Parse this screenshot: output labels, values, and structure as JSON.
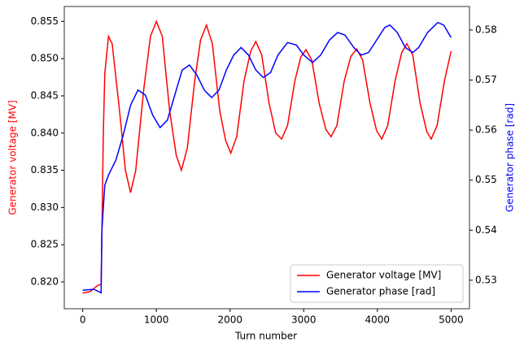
{
  "chart_data": {
    "type": "line",
    "xlabel": "Turn number",
    "ylabel": "Generator voltage [MV]",
    "y2label": "Generator phase [rad]",
    "xlim": [
      -250,
      5250
    ],
    "xticks": [
      0,
      1000,
      2000,
      3000,
      4000,
      5000
    ],
    "ylim": [
      0.8164,
      0.857
    ],
    "yticks": [
      {
        "value": 0.82,
        "label": "0.820"
      },
      0.825,
      {
        "value": 0.83,
        "label": "0.830"
      },
      0.835,
      {
        "value": 0.84,
        "label": "0.840"
      },
      0.845,
      {
        "value": 0.85,
        "label": "0.850"
      },
      0.855
    ],
    "y2lim": [
      0.5243,
      0.5847
    ],
    "y2ticks": [
      0.53,
      0.54,
      0.55,
      0.56,
      0.57,
      0.58
    ],
    "legend": "lower right",
    "series": [
      {
        "name": "Generator voltage [MV]",
        "color": "#ff0000",
        "axis": "y",
        "x": [
          0,
          100,
          200,
          250,
          260,
          280,
          300,
          350,
          400,
          500,
          580,
          650,
          720,
          830,
          920,
          1000,
          1080,
          1180,
          1270,
          1340,
          1420,
          1520,
          1600,
          1680,
          1760,
          1860,
          1940,
          2010,
          2090,
          2190,
          2280,
          2350,
          2430,
          2530,
          2620,
          2700,
          2780,
          2880,
          2960,
          3030,
          3110,
          3210,
          3300,
          3370,
          3450,
          3550,
          3640,
          3720,
          3800,
          3900,
          3990,
          4060,
          4140,
          4240,
          4330,
          4400,
          4480,
          4580,
          4670,
          4730,
          4810,
          4910,
          5000
        ],
        "values": [
          0.8185,
          0.8187,
          0.8195,
          0.8197,
          0.826,
          0.84,
          0.848,
          0.853,
          0.852,
          0.843,
          0.835,
          0.832,
          0.835,
          0.846,
          0.853,
          0.855,
          0.853,
          0.843,
          0.837,
          0.835,
          0.838,
          0.847,
          0.8525,
          0.8545,
          0.852,
          0.843,
          0.839,
          0.8373,
          0.8395,
          0.847,
          0.851,
          0.8523,
          0.8505,
          0.844,
          0.84,
          0.8392,
          0.841,
          0.847,
          0.8502,
          0.8512,
          0.8498,
          0.844,
          0.8405,
          0.8395,
          0.841,
          0.847,
          0.8503,
          0.8513,
          0.8498,
          0.844,
          0.8403,
          0.8392,
          0.841,
          0.847,
          0.8508,
          0.852,
          0.8505,
          0.844,
          0.8402,
          0.8392,
          0.841,
          0.847,
          0.851
        ]
      },
      {
        "name": "Generator phase [rad]",
        "color": "#0000ff",
        "axis": "y2",
        "x": [
          0,
          150,
          250,
          260,
          300,
          350,
          450,
          550,
          650,
          750,
          850,
          950,
          1050,
          1150,
          1250,
          1350,
          1450,
          1550,
          1650,
          1750,
          1850,
          1950,
          2050,
          2150,
          2250,
          2350,
          2450,
          2550,
          2650,
          2780,
          2900,
          3000,
          3120,
          3230,
          3350,
          3460,
          3560,
          3680,
          3780,
          3880,
          3990,
          4100,
          4170,
          4270,
          4380,
          4480,
          4560,
          4680,
          4820,
          4900,
          5000
        ],
        "values": [
          0.528,
          0.5282,
          0.5275,
          0.54,
          0.549,
          0.551,
          0.554,
          0.559,
          0.565,
          0.568,
          0.567,
          0.563,
          0.5605,
          0.562,
          0.567,
          0.572,
          0.573,
          0.571,
          0.568,
          0.5665,
          0.568,
          0.572,
          0.575,
          0.5765,
          0.575,
          0.572,
          0.5705,
          0.5715,
          0.575,
          0.5775,
          0.577,
          0.575,
          0.5735,
          0.575,
          0.578,
          0.5795,
          0.579,
          0.5765,
          0.575,
          0.5755,
          0.578,
          0.5805,
          0.581,
          0.5795,
          0.5765,
          0.5755,
          0.5765,
          0.5795,
          0.5815,
          0.581,
          0.5785
        ]
      }
    ]
  }
}
